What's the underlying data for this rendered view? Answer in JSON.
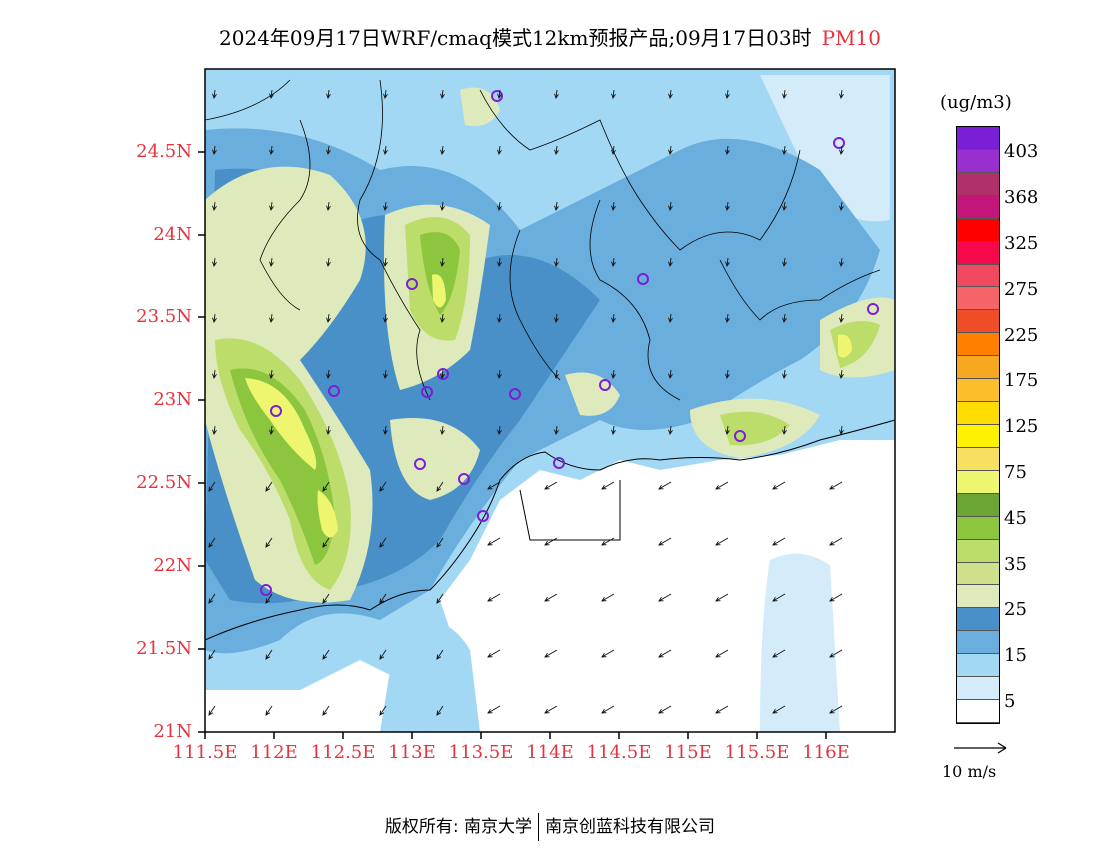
{
  "title": {
    "main": "2024年09月17日WRF/cmaq模式12km预报产品;09月17日03时",
    "variable": "PM10"
  },
  "map": {
    "lat_labels": [
      "24.5N",
      "24N",
      "23.5N",
      "23N",
      "22.5N",
      "22N",
      "21.5N",
      "21N"
    ],
    "lon_labels": [
      "111.5E",
      "112E",
      "112.5E",
      "113E",
      "113.5E",
      "114E",
      "114.5E",
      "115E",
      "115.5E",
      "116E"
    ],
    "station_marker": "circle",
    "station_color": "#7a1fd6"
  },
  "colorbar": {
    "units": "(ug/m3)",
    "labels": [
      "403",
      "368",
      "325",
      "275",
      "225",
      "175",
      "125",
      "75",
      "45",
      "35",
      "25",
      "15",
      "5"
    ],
    "colors": [
      "#7a1fd6",
      "#9a2fd0",
      "#b0306a",
      "#c4157a",
      "#ff0000",
      "#f5094a",
      "#f24860",
      "#f76468",
      "#f04c28",
      "#ff8000",
      "#f5a820",
      "#fbbf2c",
      "#ffdd00",
      "#fff200",
      "#f7e060",
      "#eef56e",
      "#6ba632",
      "#8cc63f",
      "#bcdd6a",
      "#cfe08a",
      "#dfeabc",
      "#4a90c8",
      "#6aaedd",
      "#a3d8f4",
      "#d4ecf9",
      "#ffffff"
    ]
  },
  "wind_reference": {
    "label": "10 m/s"
  },
  "footer": {
    "left": "版权所有: 南京大学",
    "right": "南京创蓝科技有限公司"
  }
}
